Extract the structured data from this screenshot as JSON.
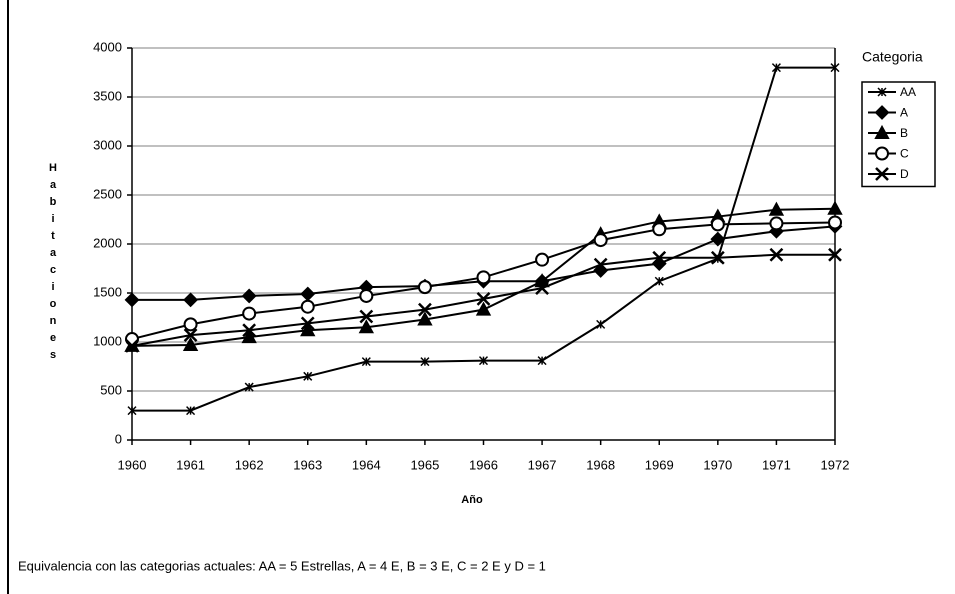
{
  "chart_data": {
    "type": "line",
    "categories": [
      "1960",
      "1961",
      "1962",
      "1963",
      "1964",
      "1965",
      "1966",
      "1967",
      "1968",
      "1969",
      "1970",
      "1971",
      "1972"
    ],
    "series": [
      {
        "name": "AA",
        "color": "#000000",
        "marker": "star",
        "values": [
          300,
          300,
          540,
          650,
          800,
          800,
          810,
          810,
          1180,
          1620,
          1850,
          3800,
          3800
        ]
      },
      {
        "name": "A",
        "color": "#000000",
        "marker": "diamond",
        "values": [
          1430,
          1430,
          1470,
          1490,
          1560,
          1570,
          1620,
          1620,
          1730,
          1800,
          2050,
          2130,
          2180
        ]
      },
      {
        "name": "B",
        "color": "#000000",
        "marker": "triangle",
        "values": [
          960,
          970,
          1050,
          1120,
          1150,
          1230,
          1330,
          1620,
          2100,
          2230,
          2280,
          2350,
          2360
        ]
      },
      {
        "name": "C",
        "color": "#000000",
        "marker": "circle",
        "values": [
          1030,
          1180,
          1290,
          1360,
          1470,
          1560,
          1660,
          1840,
          2040,
          2150,
          2200,
          2210,
          2220
        ]
      },
      {
        "name": "D",
        "color": "#000000",
        "marker": "x",
        "values": [
          960,
          1070,
          1120,
          1190,
          1260,
          1330,
          1440,
          1550,
          1790,
          1860,
          1860,
          1890,
          1890
        ]
      }
    ],
    "ylim": [
      0,
      4000
    ],
    "yticks": [
      0,
      500,
      1000,
      1500,
      2000,
      2500,
      3000,
      3500,
      4000
    ],
    "grid": true,
    "legend": "right",
    "legend_title": "Categoria",
    "x_label": "Año",
    "y_label": "Habitaciones",
    "footnote": "Equivalencia con las categorias actuales: AA = 5 Estrellas, A = 4 E, B = 3 E, C = 2 E y D = 1"
  }
}
